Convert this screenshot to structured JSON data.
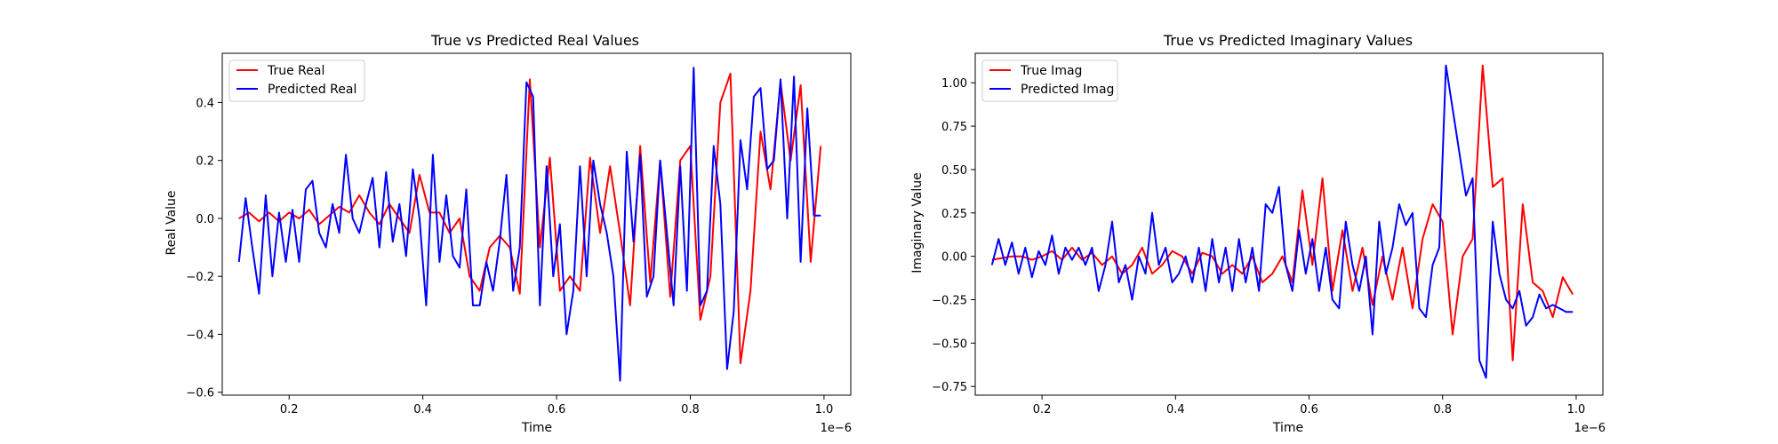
{
  "chart_data": [
    {
      "type": "line",
      "title": "True vs Predicted Real Values",
      "xlabel": "Time",
      "ylabel": "Real Value",
      "x_offset_label": "1e−6",
      "xlim": [
        0.1,
        1.04
      ],
      "ylim": [
        -0.61,
        0.57
      ],
      "xticks": [
        0.2,
        0.4,
        0.6,
        0.8,
        1.0
      ],
      "xtick_labels": [
        "0.2",
        "0.4",
        "0.6",
        "0.8",
        "1.0"
      ],
      "yticks": [
        -0.6,
        -0.4,
        -0.2,
        0.0,
        0.2,
        0.4
      ],
      "ytick_labels": [
        "−0.6",
        "−0.4",
        "−0.2",
        "0.0",
        "0.2",
        "0.4"
      ],
      "legend": "upper-left",
      "grid": false,
      "series": [
        {
          "name": "True Real",
          "color": "#ff0000",
          "x": [
            0.125,
            0.14,
            0.155,
            0.17,
            0.185,
            0.2,
            0.215,
            0.23,
            0.245,
            0.26,
            0.275,
            0.29,
            0.305,
            0.32,
            0.335,
            0.35,
            0.365,
            0.38,
            0.395,
            0.41,
            0.425,
            0.44,
            0.455,
            0.47,
            0.485,
            0.5,
            0.515,
            0.53,
            0.545,
            0.56,
            0.575,
            0.59,
            0.605,
            0.62,
            0.635,
            0.65,
            0.665,
            0.68,
            0.695,
            0.71,
            0.725,
            0.74,
            0.755,
            0.77,
            0.785,
            0.8,
            0.815,
            0.83,
            0.845,
            0.86,
            0.875,
            0.89,
            0.905,
            0.92,
            0.935,
            0.95,
            0.965,
            0.98,
            0.995
          ],
          "y": [
            0.0,
            0.02,
            -0.01,
            0.02,
            -0.01,
            0.02,
            0.0,
            0.03,
            -0.02,
            0.01,
            0.04,
            0.02,
            0.08,
            0.02,
            -0.02,
            0.05,
            0.0,
            -0.05,
            0.15,
            0.02,
            0.02,
            -0.05,
            0.0,
            -0.2,
            -0.25,
            -0.1,
            -0.06,
            -0.1,
            -0.26,
            0.48,
            -0.1,
            0.21,
            -0.25,
            -0.2,
            -0.25,
            0.21,
            -0.05,
            0.18,
            -0.05,
            -0.3,
            0.25,
            -0.22,
            0.2,
            -0.27,
            0.2,
            0.25,
            -0.35,
            -0.2,
            0.4,
            0.5,
            -0.5,
            -0.25,
            0.3,
            0.1,
            0.47,
            0.2,
            0.46,
            -0.15,
            0.25
          ]
        },
        {
          "name": "Predicted Real",
          "color": "#0000ff",
          "x": [
            0.125,
            0.135,
            0.145,
            0.155,
            0.165,
            0.175,
            0.185,
            0.195,
            0.205,
            0.215,
            0.225,
            0.235,
            0.245,
            0.255,
            0.265,
            0.275,
            0.285,
            0.295,
            0.305,
            0.315,
            0.325,
            0.335,
            0.345,
            0.355,
            0.365,
            0.375,
            0.385,
            0.395,
            0.405,
            0.415,
            0.425,
            0.435,
            0.445,
            0.455,
            0.465,
            0.475,
            0.485,
            0.495,
            0.505,
            0.515,
            0.525,
            0.535,
            0.545,
            0.555,
            0.565,
            0.575,
            0.585,
            0.595,
            0.605,
            0.615,
            0.625,
            0.635,
            0.645,
            0.655,
            0.665,
            0.675,
            0.685,
            0.695,
            0.705,
            0.715,
            0.725,
            0.735,
            0.745,
            0.755,
            0.765,
            0.775,
            0.785,
            0.795,
            0.805,
            0.815,
            0.825,
            0.835,
            0.845,
            0.855,
            0.865,
            0.875,
            0.885,
            0.895,
            0.905,
            0.915,
            0.925,
            0.935,
            0.945,
            0.955,
            0.965,
            0.975,
            0.985,
            0.995
          ],
          "y": [
            -0.15,
            0.07,
            -0.1,
            -0.26,
            0.08,
            -0.2,
            0.02,
            -0.15,
            0.03,
            -0.15,
            0.1,
            0.13,
            -0.05,
            -0.1,
            0.05,
            -0.05,
            0.22,
            0.0,
            -0.05,
            0.05,
            0.14,
            -0.1,
            0.16,
            -0.08,
            0.05,
            -0.13,
            0.17,
            0.0,
            -0.3,
            0.22,
            -0.15,
            0.08,
            -0.13,
            -0.17,
            0.1,
            -0.3,
            -0.3,
            -0.15,
            -0.25,
            -0.08,
            0.15,
            -0.25,
            -0.1,
            0.47,
            0.42,
            -0.3,
            0.18,
            -0.2,
            -0.02,
            -0.4,
            -0.25,
            0.18,
            -0.2,
            0.2,
            0.05,
            -0.05,
            -0.2,
            -0.56,
            0.23,
            -0.08,
            0.22,
            -0.27,
            -0.2,
            0.2,
            -0.05,
            -0.3,
            0.18,
            -0.25,
            0.52,
            -0.3,
            -0.25,
            0.25,
            0.05,
            -0.52,
            -0.32,
            0.27,
            0.1,
            0.42,
            0.45,
            0.17,
            0.2,
            0.48,
            0.0,
            0.49,
            -0.15,
            0.38,
            0.01,
            0.01
          ]
        }
      ]
    },
    {
      "type": "line",
      "title": "True vs Predicted Imaginary Values",
      "xlabel": "Time",
      "ylabel": "Imaginary Value",
      "x_offset_label": "1e−6",
      "xlim": [
        0.1,
        1.04
      ],
      "ylim": [
        -0.8,
        1.17
      ],
      "xticks": [
        0.2,
        0.4,
        0.6,
        0.8,
        1.0
      ],
      "xtick_labels": [
        "0.2",
        "0.4",
        "0.6",
        "0.8",
        "1.0"
      ],
      "yticks": [
        -0.75,
        -0.5,
        -0.25,
        0.0,
        0.25,
        0.5,
        0.75,
        1.0
      ],
      "ytick_labels": [
        "−0.75",
        "−0.50",
        "−0.25",
        "0.00",
        "0.25",
        "0.50",
        "0.75",
        "1.00"
      ],
      "legend": "upper-left",
      "grid": false,
      "series": [
        {
          "name": "True Imag",
          "color": "#ff0000",
          "x": [
            0.125,
            0.14,
            0.155,
            0.17,
            0.185,
            0.2,
            0.215,
            0.23,
            0.245,
            0.26,
            0.275,
            0.29,
            0.305,
            0.32,
            0.335,
            0.35,
            0.365,
            0.38,
            0.395,
            0.41,
            0.425,
            0.44,
            0.455,
            0.47,
            0.485,
            0.5,
            0.515,
            0.53,
            0.545,
            0.56,
            0.575,
            0.59,
            0.605,
            0.62,
            0.635,
            0.65,
            0.665,
            0.68,
            0.695,
            0.71,
            0.725,
            0.74,
            0.755,
            0.77,
            0.785,
            0.8,
            0.815,
            0.83,
            0.845,
            0.86,
            0.875,
            0.89,
            0.905,
            0.92,
            0.935,
            0.95,
            0.965,
            0.98,
            0.995
          ],
          "y": [
            -0.02,
            -0.01,
            0.0,
            0.0,
            -0.02,
            0.0,
            0.03,
            -0.02,
            0.05,
            -0.02,
            0.02,
            -0.05,
            0.0,
            -0.1,
            -0.05,
            0.05,
            -0.1,
            -0.05,
            0.03,
            0.0,
            -0.1,
            0.02,
            0.0,
            -0.1,
            -0.05,
            -0.1,
            0.0,
            -0.15,
            -0.1,
            0.0,
            -0.15,
            0.38,
            -0.05,
            0.45,
            -0.2,
            0.15,
            -0.2,
            0.05,
            -0.28,
            0.0,
            -0.25,
            0.05,
            -0.3,
            0.1,
            0.3,
            0.2,
            -0.45,
            0.0,
            0.1,
            1.1,
            0.4,
            0.45,
            -0.6,
            0.3,
            -0.15,
            -0.2,
            -0.35,
            -0.12,
            -0.22
          ]
        },
        {
          "name": "Predicted Imag",
          "color": "#0000ff",
          "x": [
            0.125,
            0.135,
            0.145,
            0.155,
            0.165,
            0.175,
            0.185,
            0.195,
            0.205,
            0.215,
            0.225,
            0.235,
            0.245,
            0.255,
            0.265,
            0.275,
            0.285,
            0.295,
            0.305,
            0.315,
            0.325,
            0.335,
            0.345,
            0.355,
            0.365,
            0.375,
            0.385,
            0.395,
            0.405,
            0.415,
            0.425,
            0.435,
            0.445,
            0.455,
            0.465,
            0.475,
            0.485,
            0.495,
            0.505,
            0.515,
            0.525,
            0.535,
            0.545,
            0.555,
            0.565,
            0.575,
            0.585,
            0.595,
            0.605,
            0.615,
            0.625,
            0.635,
            0.645,
            0.655,
            0.665,
            0.675,
            0.685,
            0.695,
            0.705,
            0.715,
            0.725,
            0.735,
            0.745,
            0.755,
            0.765,
            0.775,
            0.785,
            0.795,
            0.805,
            0.815,
            0.825,
            0.835,
            0.845,
            0.855,
            0.865,
            0.875,
            0.885,
            0.895,
            0.905,
            0.915,
            0.925,
            0.935,
            0.945,
            0.955,
            0.965,
            0.975,
            0.985,
            0.995
          ],
          "y": [
            -0.05,
            0.1,
            -0.05,
            0.08,
            -0.1,
            0.05,
            -0.12,
            0.03,
            -0.05,
            0.12,
            -0.1,
            0.05,
            -0.02,
            0.05,
            -0.05,
            0.05,
            -0.2,
            -0.05,
            0.2,
            -0.15,
            -0.05,
            -0.25,
            0.0,
            -0.1,
            0.25,
            -0.05,
            0.05,
            -0.15,
            -0.1,
            0.0,
            -0.15,
            0.05,
            -0.2,
            0.1,
            -0.15,
            0.05,
            -0.2,
            0.1,
            -0.15,
            0.05,
            -0.2,
            0.3,
            0.25,
            0.4,
            -0.05,
            -0.2,
            0.15,
            -0.1,
            0.1,
            -0.2,
            0.05,
            -0.25,
            -0.3,
            0.2,
            -0.05,
            -0.2,
            0.0,
            -0.45,
            0.2,
            -0.1,
            0.05,
            0.3,
            0.18,
            0.25,
            -0.3,
            -0.35,
            -0.05,
            0.05,
            1.1,
            0.85,
            0.6,
            0.35,
            0.45,
            -0.6,
            -0.7,
            0.2,
            -0.1,
            -0.25,
            -0.3,
            -0.2,
            -0.4,
            -0.35,
            -0.22,
            -0.3,
            -0.28,
            -0.3,
            -0.32,
            -0.32
          ]
        }
      ]
    }
  ]
}
